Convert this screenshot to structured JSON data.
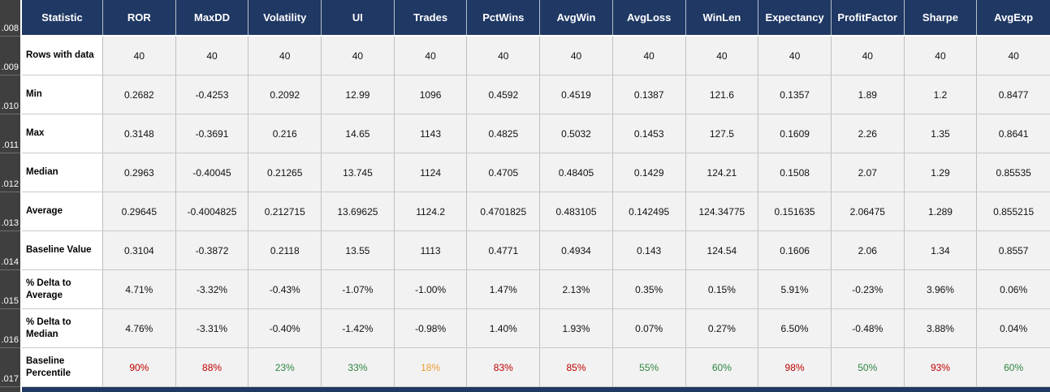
{
  "colors": {
    "header_bg": "#1F3864",
    "gutter_bg": "#3F3F3F",
    "cell_bg": "#F2F2F2",
    "label_bg": "#FFFFFF",
    "grid_line": "#BFBFBF",
    "red": "#C00000",
    "green": "#2E8540",
    "orange": "#ED9E38"
  },
  "gutter": {
    "labels": [
      ".008",
      ".009",
      ".010",
      ".011",
      ".012",
      ".013",
      ".014",
      ".015",
      ".016",
      ".017"
    ]
  },
  "table": {
    "columns": [
      "Statistic",
      "ROR",
      "MaxDD",
      "Volatility",
      "UI",
      "Trades",
      "PctWins",
      "AvgWin",
      "AvgLoss",
      "WinLen",
      "Expectancy",
      "ProfitFactor",
      "Sharpe",
      "AvgExp"
    ],
    "rows": [
      {
        "label": "Rows with data",
        "values": [
          "40",
          "40",
          "40",
          "40",
          "40",
          "40",
          "40",
          "40",
          "40",
          "40",
          "40",
          "40",
          "40"
        ]
      },
      {
        "label": "Min",
        "values": [
          "0.2682",
          "-0.4253",
          "0.2092",
          "12.99",
          "1096",
          "0.4592",
          "0.4519",
          "0.1387",
          "121.6",
          "0.1357",
          "1.89",
          "1.2",
          "0.8477"
        ]
      },
      {
        "label": "Max",
        "values": [
          "0.3148",
          "-0.3691",
          "0.216",
          "14.65",
          "1143",
          "0.4825",
          "0.5032",
          "0.1453",
          "127.5",
          "0.1609",
          "2.26",
          "1.35",
          "0.8641"
        ]
      },
      {
        "label": "Median",
        "values": [
          "0.2963",
          "-0.40045",
          "0.21265",
          "13.745",
          "1124",
          "0.4705",
          "0.48405",
          "0.1429",
          "124.21",
          "0.1508",
          "2.07",
          "1.29",
          "0.85535"
        ]
      },
      {
        "label": "Average",
        "values": [
          "0.29645",
          "-0.4004825",
          "0.212715",
          "13.69625",
          "1124.2",
          "0.4701825",
          "0.483105",
          "0.142495",
          "124.34775",
          "0.151635",
          "2.06475",
          "1.289",
          "0.855215"
        ]
      },
      {
        "label": "Baseline Value",
        "values": [
          "0.3104",
          "-0.3872",
          "0.2118",
          "13.55",
          "1113",
          "0.4771",
          "0.4934",
          "0.143",
          "124.54",
          "0.1606",
          "2.06",
          "1.34",
          "0.8557"
        ]
      },
      {
        "label": "% Delta to Average",
        "values": [
          "4.71%",
          "-3.32%",
          "-0.43%",
          "-1.07%",
          "-1.00%",
          "1.47%",
          "2.13%",
          "0.35%",
          "0.15%",
          "5.91%",
          "-0.23%",
          "3.96%",
          "0.06%"
        ]
      },
      {
        "label": "% Delta to Median",
        "values": [
          "4.76%",
          "-3.31%",
          "-0.40%",
          "-1.42%",
          "-0.98%",
          "1.40%",
          "1.93%",
          "0.07%",
          "0.27%",
          "6.50%",
          "-0.48%",
          "3.88%",
          "0.04%"
        ]
      },
      {
        "label": "Baseline Percentile",
        "values": [
          "90%",
          "88%",
          "23%",
          "33%",
          "18%",
          "83%",
          "85%",
          "55%",
          "60%",
          "98%",
          "50%",
          "93%",
          "60%"
        ],
        "value_colors": [
          "red",
          "red",
          "green",
          "green",
          "orange",
          "red",
          "red",
          "green",
          "green",
          "red",
          "green",
          "red",
          "green"
        ]
      }
    ]
  }
}
